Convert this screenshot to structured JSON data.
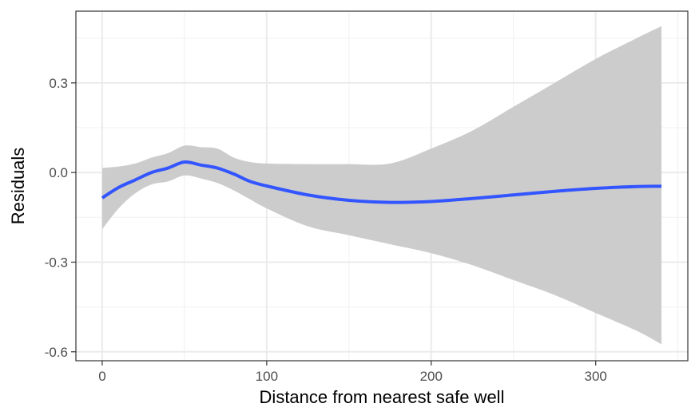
{
  "chart_data": {
    "type": "line",
    "title": "",
    "xlabel": "Distance from nearest safe well",
    "ylabel": "Residuals",
    "xlim": [
      -16,
      356
    ],
    "ylim": [
      -0.63,
      0.54
    ],
    "x_ticks": [
      0,
      100,
      200,
      300
    ],
    "x_tick_labels": [
      "0",
      "100",
      "200",
      "300"
    ],
    "y_ticks": [
      -0.6,
      -0.3,
      0.0,
      0.3
    ],
    "y_tick_labels": [
      "-0.6",
      "-0.3",
      "0.0",
      "0.3"
    ],
    "grid": true,
    "legend": "none",
    "series": [
      {
        "kind": "smooth-fit",
        "color": "#3355ff",
        "ribbon_color": "#cccccc",
        "x": [
          0,
          10,
          20,
          30,
          40,
          50,
          60,
          70,
          80,
          90,
          100,
          125,
          150,
          175,
          200,
          225,
          250,
          275,
          300,
          325,
          340
        ],
        "y": [
          -0.085,
          -0.05,
          -0.025,
          0.0,
          0.015,
          0.035,
          0.025,
          0.015,
          -0.005,
          -0.03,
          -0.045,
          -0.075,
          -0.093,
          -0.1,
          -0.097,
          -0.087,
          -0.075,
          -0.063,
          -0.053,
          -0.047,
          -0.046
        ],
        "lower": [
          -0.19,
          -0.12,
          -0.07,
          -0.04,
          -0.03,
          -0.01,
          -0.02,
          -0.035,
          -0.06,
          -0.09,
          -0.12,
          -0.18,
          -0.21,
          -0.24,
          -0.27,
          -0.31,
          -0.36,
          -0.41,
          -0.47,
          -0.53,
          -0.575
        ],
        "upper": [
          0.015,
          0.02,
          0.03,
          0.05,
          0.065,
          0.09,
          0.085,
          0.08,
          0.05,
          0.035,
          0.03,
          0.028,
          0.028,
          0.03,
          0.08,
          0.14,
          0.22,
          0.3,
          0.38,
          0.45,
          0.49
        ]
      }
    ]
  }
}
